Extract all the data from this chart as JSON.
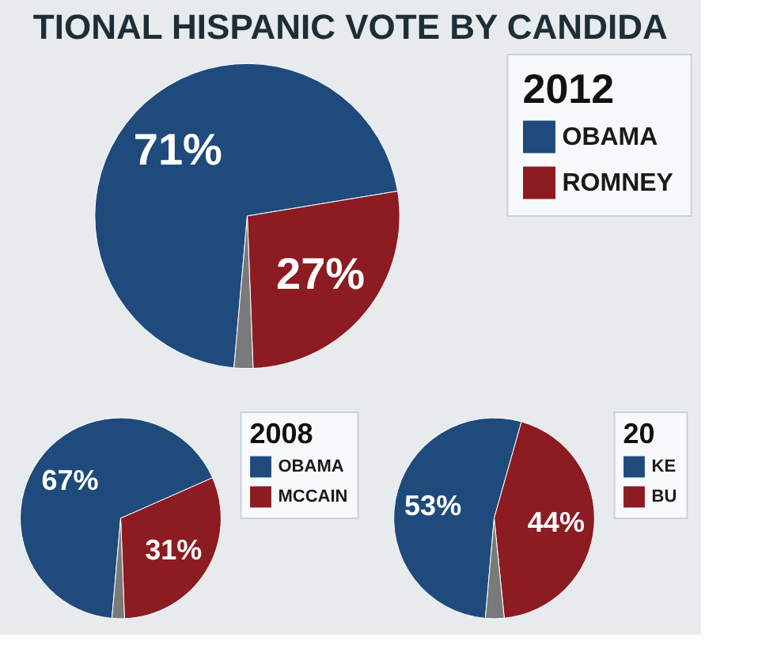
{
  "chart_data": [
    {
      "type": "pie",
      "title": "TIONAL HISPANIC VOTE BY CANDIDA",
      "legend_title": "2012",
      "categories": [
        "OBAMA",
        "ROMNEY",
        null
      ],
      "values": [
        71,
        27,
        2
      ],
      "colors": [
        "#1f4a7c",
        "#8c1b22",
        "#7a7a7a"
      ],
      "value_labels": [
        "71%",
        "27%",
        null
      ],
      "legend": "right"
    },
    {
      "type": "pie",
      "legend_title": "2008",
      "categories": [
        "OBAMA",
        "MCCAIN",
        null
      ],
      "values": [
        67,
        31,
        2
      ],
      "colors": [
        "#1f4a7c",
        "#8c1b22",
        "#7a7a7a"
      ],
      "value_labels": [
        "67%",
        "31%",
        null
      ],
      "legend": "right"
    },
    {
      "type": "pie",
      "legend_title": "20",
      "categories": [
        "KE",
        "BU",
        null
      ],
      "values": [
        53,
        44,
        3
      ],
      "colors": [
        "#1f4a7c",
        "#8c1b22",
        "#7a7a7a"
      ],
      "value_labels": [
        "53%",
        "44%",
        null
      ],
      "legend": "right"
    }
  ]
}
